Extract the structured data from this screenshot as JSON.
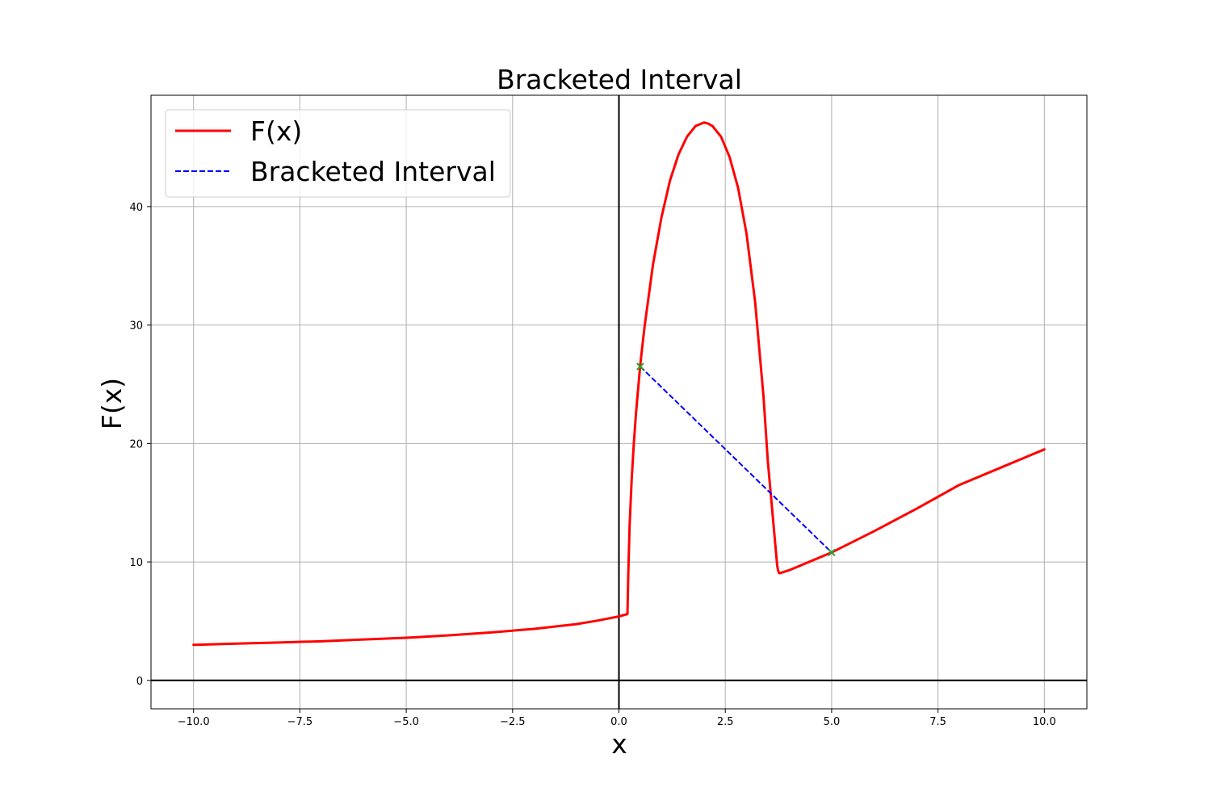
{
  "chart_data": {
    "type": "line",
    "title": "Bracketed Interval",
    "xlabel": "x",
    "ylabel": "F(x)",
    "xlim": [
      -11,
      11
    ],
    "ylim": [
      -2.4,
      49.4
    ],
    "grid": true,
    "legend_position": "top-left",
    "x_ticks": [
      -10.0,
      -7.5,
      -5.0,
      -2.5,
      0.0,
      2.5,
      5.0,
      7.5,
      10.0
    ],
    "x_tick_labels": [
      "−10.0",
      "−7.5",
      "−5.0",
      "−2.5",
      "0.0",
      "2.5",
      "5.0",
      "7.5",
      "10.0"
    ],
    "y_ticks": [
      0,
      10,
      20,
      30,
      40
    ],
    "y_tick_labels": [
      "0",
      "10",
      "20",
      "30",
      "40"
    ],
    "reference_lines": [
      {
        "orientation": "horizontal",
        "value": 0,
        "color": "#000000"
      },
      {
        "orientation": "vertical",
        "value": 0,
        "color": "#000000"
      }
    ],
    "series": [
      {
        "name": "F(x)",
        "color": "#ff0000",
        "style": "solid",
        "x": [
          -10,
          -9,
          -8,
          -7,
          -6,
          -5,
          -4,
          -3,
          -2,
          -1,
          -0.5,
          0,
          0.2,
          0.22,
          0.25,
          0.3,
          0.35,
          0.4,
          0.5,
          0.6,
          0.8,
          1.0,
          1.2,
          1.4,
          1.6,
          1.8,
          2.0,
          2.1,
          2.2,
          2.4,
          2.6,
          2.8,
          3.0,
          3.2,
          3.4,
          3.5,
          3.6,
          3.65,
          3.7,
          3.72,
          3.74,
          3.76,
          3.77,
          3.78,
          4,
          5,
          6,
          7,
          8,
          9,
          10
        ],
        "y": [
          3.0,
          3.1,
          3.2,
          3.3,
          3.45,
          3.6,
          3.8,
          4.05,
          4.35,
          4.75,
          5.05,
          5.4,
          5.6,
          9.0,
          13.0,
          17.0,
          20.0,
          22.5,
          26.6,
          29.8,
          35.1,
          39.1,
          42.2,
          44.4,
          45.9,
          46.8,
          47.1,
          47.0,
          46.8,
          45.9,
          44.2,
          41.6,
          37.7,
          32.0,
          23.9,
          18.5,
          14.5,
          12.5,
          10.5,
          9.7,
          9.3,
          9.1,
          9.05,
          9.05,
          9.3,
          10.8,
          12.6,
          14.5,
          16.5,
          18.0,
          19.5
        ]
      },
      {
        "name": "Bracketed Interval",
        "color": "#0000ff",
        "style": "dashed",
        "x": [
          0.5,
          5.0
        ],
        "y": [
          26.5,
          10.8
        ]
      }
    ],
    "markers": [
      {
        "x": 0.5,
        "y": 26.5,
        "color": "#2ca02c",
        "symbol": "x"
      },
      {
        "x": 5.0,
        "y": 10.8,
        "color": "#2ca02c",
        "symbol": "x"
      }
    ]
  }
}
